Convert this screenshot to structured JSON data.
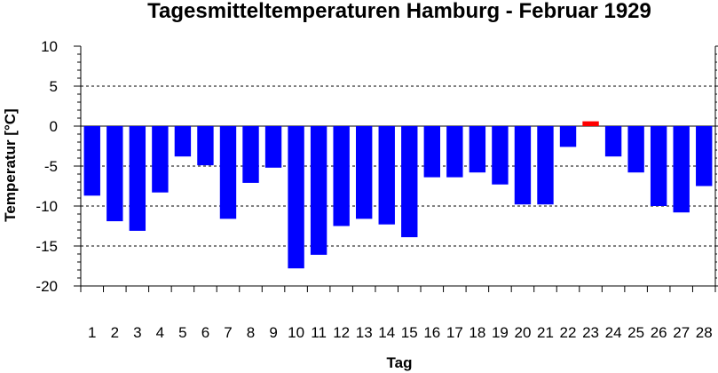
{
  "chart_data": {
    "type": "bar",
    "title": "Tagesmitteltemperaturen Hamburg - Februar 1929",
    "xlabel": "Tag",
    "ylabel": "Temperatur [°C]",
    "ylim": [
      -20,
      10
    ],
    "yticks": [
      10,
      5,
      0,
      -5,
      -10,
      -15,
      -20
    ],
    "grid": "horizontal-dashed",
    "categories": [
      "1",
      "2",
      "3",
      "4",
      "5",
      "6",
      "7",
      "8",
      "9",
      "10",
      "11",
      "12",
      "13",
      "14",
      "15",
      "16",
      "17",
      "18",
      "19",
      "20",
      "21",
      "22",
      "23",
      "24",
      "25",
      "26",
      "27",
      "28"
    ],
    "values": [
      -8.7,
      -11.9,
      -13.1,
      -8.3,
      -3.8,
      -4.9,
      -11.6,
      -7.1,
      -5.2,
      -17.8,
      -16.1,
      -12.5,
      -11.6,
      -12.3,
      -13.9,
      -6.4,
      -6.4,
      -5.8,
      -7.3,
      -9.8,
      -9.8,
      -2.6,
      0.6,
      -3.8,
      -5.8,
      -10.0,
      -10.8,
      -7.5
    ],
    "colors": {
      "negative": "#0000ff",
      "positive": "#ff0000",
      "grid": "#000000"
    }
  }
}
